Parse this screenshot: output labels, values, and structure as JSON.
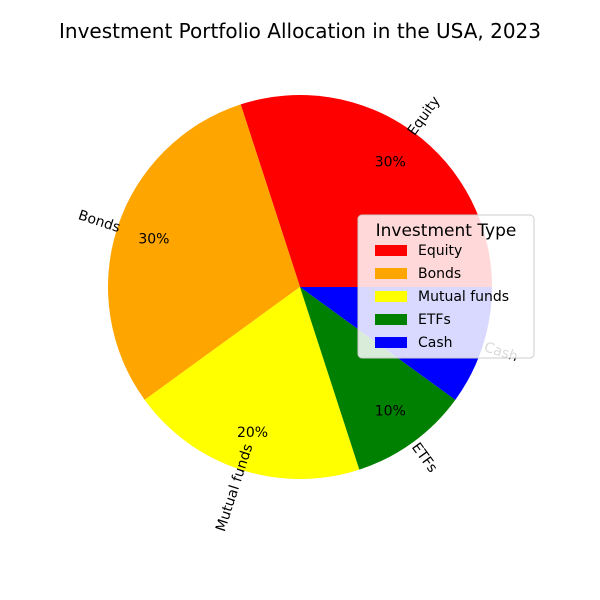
{
  "chart_data": {
    "type": "pie",
    "title": "Investment Portfolio Allocation in the USA, 2023",
    "categories": [
      "Equity",
      "Bonds",
      "Mutual funds",
      "ETFs",
      "Cash"
    ],
    "values": [
      30,
      30,
      20,
      10,
      10
    ],
    "percent_labels": [
      "30%",
      "30%",
      "20%",
      "10%",
      ""
    ],
    "colors": [
      "#ff0000",
      "#ffa500",
      "#ffff00",
      "#008000",
      "#0000ff"
    ],
    "start_angle_deg": 0,
    "direction": "counterclockwise",
    "legend": {
      "title": "Investment Type",
      "placement": "center-right",
      "entries": [
        "Equity",
        "Bonds",
        "Mutual funds",
        "ETFs",
        "Cash"
      ]
    }
  }
}
